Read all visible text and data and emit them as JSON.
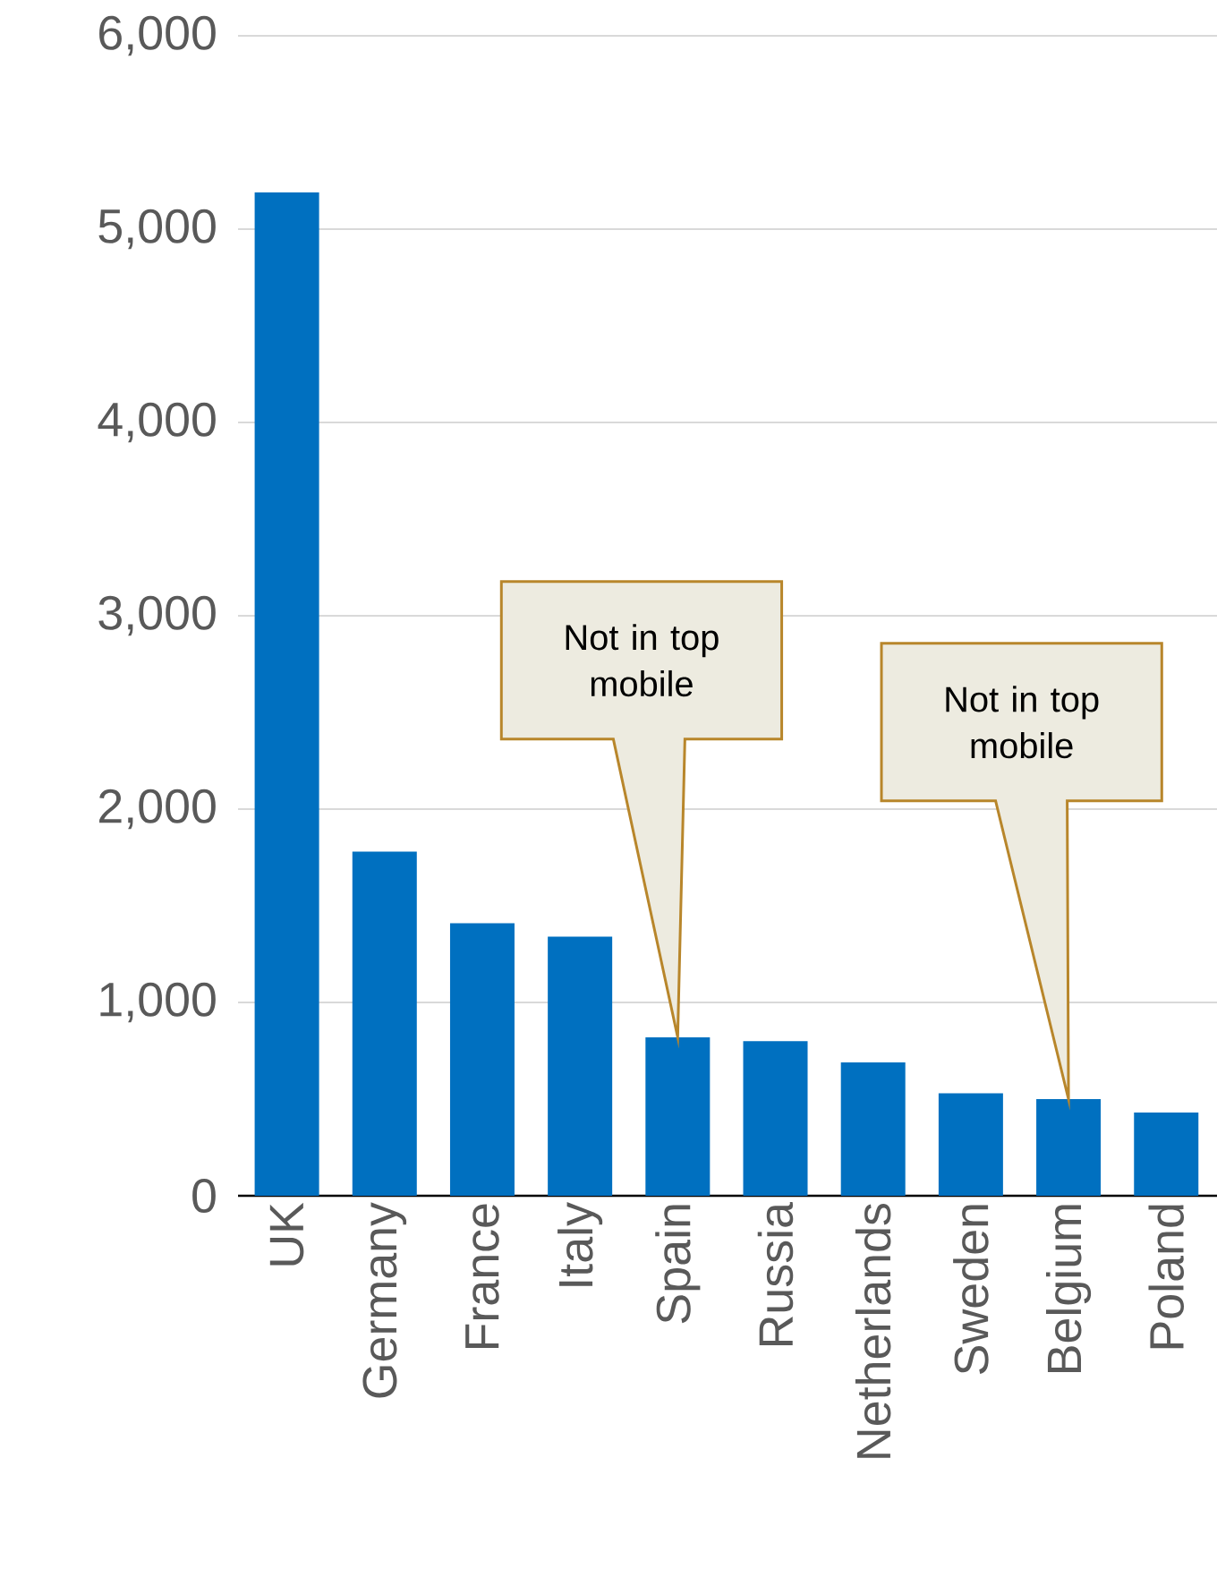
{
  "chart_data": {
    "type": "bar",
    "categories": [
      "UK",
      "Germany",
      "France",
      "Italy",
      "Spain",
      "Russia",
      "Netherlands",
      "Sweden",
      "Belgium",
      "Poland"
    ],
    "values": [
      5190,
      1780,
      1410,
      1340,
      820,
      800,
      690,
      530,
      500,
      430
    ],
    "color": "#0070c0",
    "ylim": [
      0,
      6000
    ],
    "yticks": [
      {
        "value": 0,
        "label": "0"
      },
      {
        "value": 1000,
        "label": "1,000"
      },
      {
        "value": 2000,
        "label": "2,000"
      },
      {
        "value": 3000,
        "label": "3,000"
      },
      {
        "value": 4000,
        "label": "4,000"
      },
      {
        "value": 5000,
        "label": "5,000"
      },
      {
        "value": 6000,
        "label": "6,000"
      }
    ],
    "grid": "y",
    "annotations": [
      "Not in top mobile",
      "Not in top mobile"
    ]
  }
}
